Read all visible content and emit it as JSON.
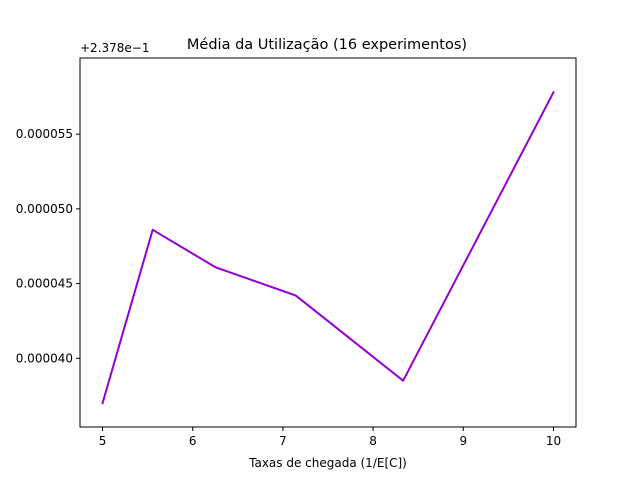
{
  "chart_data": {
    "type": "line",
    "title": "Média da Utilização (16 experimentos)",
    "xlabel": "Taxas de chegada (1/E[C])",
    "ylabel": "",
    "offset_label": "+2.378e−1",
    "x_ticks": [
      "5",
      "6",
      "7",
      "8",
      "9",
      "10"
    ],
    "y_ticks": [
      "0.000040",
      "0.000045",
      "0.000050",
      "0.000055"
    ],
    "xlim": [
      4.75,
      10.25
    ],
    "ylim": [
      3.54e-05,
      6.01e-05
    ],
    "grid": false,
    "series": [
      {
        "color": "#9400d3",
        "x": [
          5.0,
          5.556,
          6.25,
          7.143,
          8.333,
          10.0
        ],
        "y": [
          3.7e-05,
          4.86e-05,
          4.61e-05,
          4.42e-05,
          3.85e-05,
          5.78e-05
        ]
      }
    ]
  }
}
